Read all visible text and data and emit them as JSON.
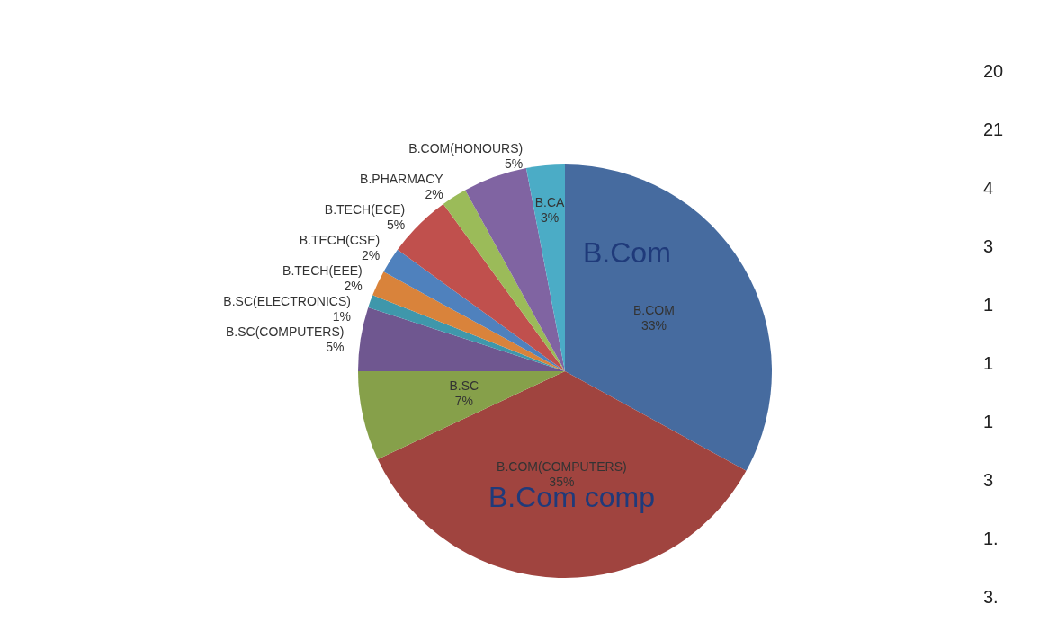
{
  "chart_data": {
    "type": "pie",
    "categories": [
      "B.COM",
      "B.COM(COMPUTERS)",
      "B.SC",
      "B.SC(COMPUTERS)",
      "B.SC(ELECTRONICS)",
      "B.TECH(EEE)",
      "B.TECH(CSE)",
      "B.TECH(ECE)",
      "B.PHARMACY",
      "B.COM(HONOURS)",
      "B.CA"
    ],
    "values": [
      33,
      35,
      7,
      5,
      1,
      2,
      2,
      5,
      2,
      5,
      3
    ],
    "value_labels": [
      "33%",
      "35%",
      "7%",
      "5%",
      "1%",
      "2%",
      "2%",
      "5%",
      "2%",
      "5%",
      "3%"
    ],
    "colors": [
      "#466b9f",
      "#a0443f",
      "#86a04a",
      "#6f5790",
      "#3f97ab",
      "#d9833b",
      "#4f81bd",
      "#c0504d",
      "#9bbb59",
      "#8064a2",
      "#4bacc6"
    ],
    "annotations": [
      "B.Com",
      "B.Com comp",
      "20",
      "21",
      "4",
      "3",
      "1",
      "1",
      "1",
      "3",
      "1.",
      "3."
    ],
    "legend": false
  }
}
